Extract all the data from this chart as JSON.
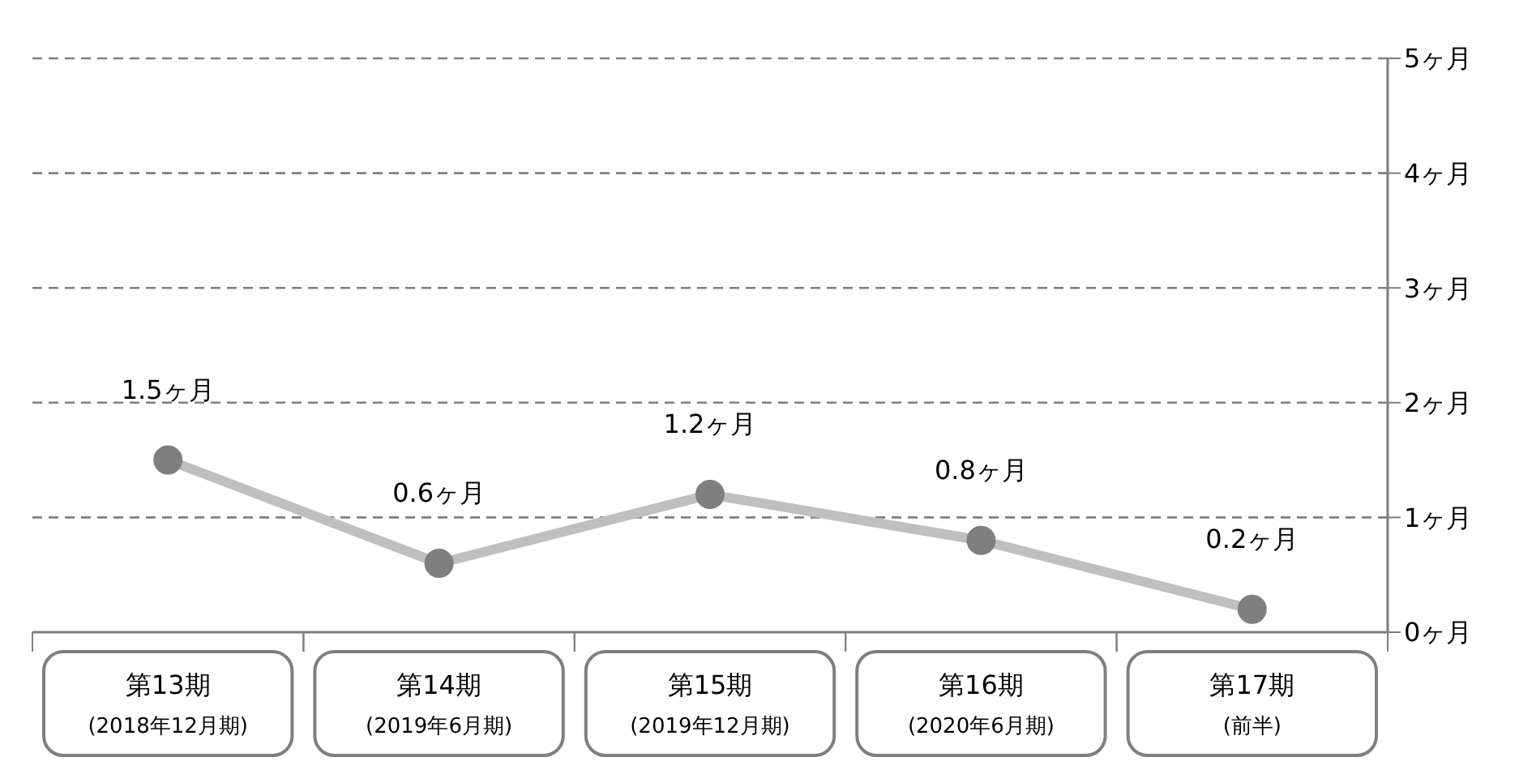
{
  "chart_data": {
    "type": "line",
    "categories": [
      "第13期\n(2018年12月期)",
      "第14期\n(2019年6月期)",
      "第15期\n(2019年12月期)",
      "第16期\n(2020年6月期)",
      "第17期\n(前半)"
    ],
    "series": [
      {
        "color": "#bfbfbf",
        "values": [
          1.5,
          0.6,
          1.2,
          0.8,
          0.2
        ],
        "value_labels": [
          "1.5ヶ月",
          "0.6ヶ月",
          "1.2ヶ月",
          "0.8ヶ月",
          "0.2ヶ月"
        ]
      }
    ],
    "ylim": [
      0,
      5
    ],
    "yticks": [
      {
        "value": 0,
        "label": "0ヶ月"
      },
      {
        "value": 1,
        "label": "1ヶ月"
      },
      {
        "value": 2,
        "label": "2ヶ月"
      },
      {
        "value": 3,
        "label": "3ヶ月"
      },
      {
        "value": 4,
        "label": "4ヶ月"
      },
      {
        "value": 5,
        "label": "5ヶ月"
      }
    ],
    "grid": "y",
    "marker": "circle",
    "line_style": "solid",
    "legend": false
  }
}
